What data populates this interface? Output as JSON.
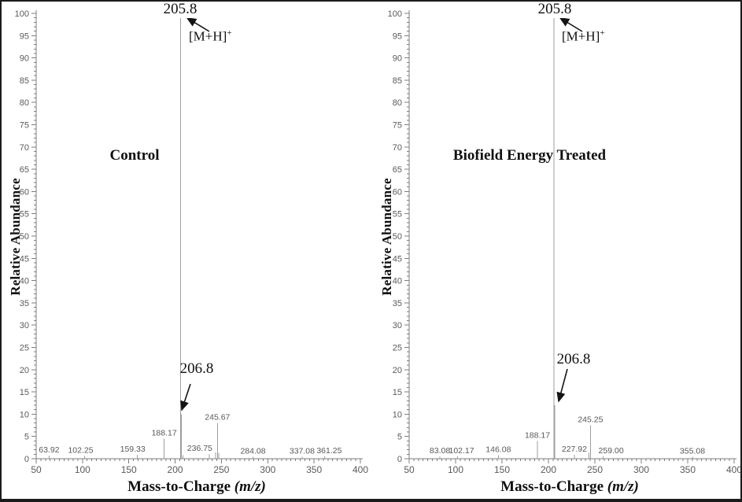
{
  "figure": {
    "y_axis_label": "Relative Abundance",
    "x_axis_label": "Mass-to-Charge",
    "x_axis_label_italic": "(m/z)"
  },
  "chart_data": [
    {
      "type": "bar",
      "subtype": "mass-spectrum",
      "title": "Control",
      "xlabel": "Mass-to-Charge (m/z)",
      "ylabel": "Relative Abundance",
      "xlim": [
        50,
        400
      ],
      "ylim": [
        0,
        100
      ],
      "x_tick_step": 50,
      "x_minor_step": 5,
      "y_tick_step": 5,
      "y_minor_step": 1,
      "grid": false,
      "legend": false,
      "base_peak": {
        "mz": "205.8",
        "intensity": 100,
        "ion_base": "[M+H]",
        "ion_charge": "+"
      },
      "secondary_peak": {
        "mz": "206.8",
        "intensity": 10
      },
      "peaks": [
        {
          "mz": 63.92,
          "intensity": 0.7,
          "label": "63.92"
        },
        {
          "mz": 102.25,
          "intensity": 0.6,
          "label": "102.25",
          "dx": -5
        },
        {
          "mz": 159.33,
          "intensity": 0.9,
          "label": "159.33",
          "dx": -6
        },
        {
          "mz": 188.17,
          "intensity": 4.5,
          "label": "188.17"
        },
        {
          "mz": 205.8,
          "intensity": 100,
          "label": ""
        },
        {
          "mz": 206.8,
          "intensity": 10,
          "label": ""
        },
        {
          "mz": 208.3,
          "intensity": 0.8,
          "label": ""
        },
        {
          "mz": 236.75,
          "intensity": 1.1,
          "label": "236.75",
          "dx": -12
        },
        {
          "mz": 243.6,
          "intensity": 1.4,
          "label": ""
        },
        {
          "mz": 245.67,
          "intensity": 8,
          "label": "245.67"
        },
        {
          "mz": 247.1,
          "intensity": 1.2,
          "label": ""
        },
        {
          "mz": 284.08,
          "intensity": 0.4,
          "label": "284.08"
        },
        {
          "mz": 337.08,
          "intensity": 0.4,
          "label": "337.08"
        },
        {
          "mz": 361.25,
          "intensity": 0.5,
          "label": "361.25",
          "dx": 6
        }
      ]
    },
    {
      "type": "bar",
      "subtype": "mass-spectrum",
      "title": "Biofield Energy Treated",
      "xlabel": "Mass-to-Charge (m/z)",
      "ylabel": "Relative Abundance",
      "xlim": [
        50,
        400
      ],
      "ylim": [
        0,
        100
      ],
      "x_tick_step": 50,
      "x_minor_step": 5,
      "y_tick_step": 5,
      "y_minor_step": 1,
      "grid": false,
      "legend": false,
      "base_peak": {
        "mz": "205.8",
        "intensity": 100,
        "ion_base": "[M+H]",
        "ion_charge": "+"
      },
      "secondary_peak": {
        "mz": "206.8",
        "intensity": 12
      },
      "peaks": [
        {
          "mz": 83.08,
          "intensity": 0.5,
          "label": "83.08"
        },
        {
          "mz": 102.17,
          "intensity": 0.5,
          "label": "102.17",
          "dx": 5
        },
        {
          "mz": 146.08,
          "intensity": 0.8,
          "label": "146.08"
        },
        {
          "mz": 188.17,
          "intensity": 4,
          "label": "188.17"
        },
        {
          "mz": 205.8,
          "intensity": 100,
          "label": ""
        },
        {
          "mz": 206.8,
          "intensity": 12,
          "label": ""
        },
        {
          "mz": 227.92,
          "intensity": 0.9,
          "label": "227.92"
        },
        {
          "mz": 243.6,
          "intensity": 1.3,
          "label": ""
        },
        {
          "mz": 245.25,
          "intensity": 7.5,
          "label": "245.25"
        },
        {
          "mz": 259.0,
          "intensity": 0.5,
          "label": "259.00",
          "dx": 10
        },
        {
          "mz": 355.08,
          "intensity": 0.4,
          "label": "355.08"
        }
      ]
    }
  ]
}
